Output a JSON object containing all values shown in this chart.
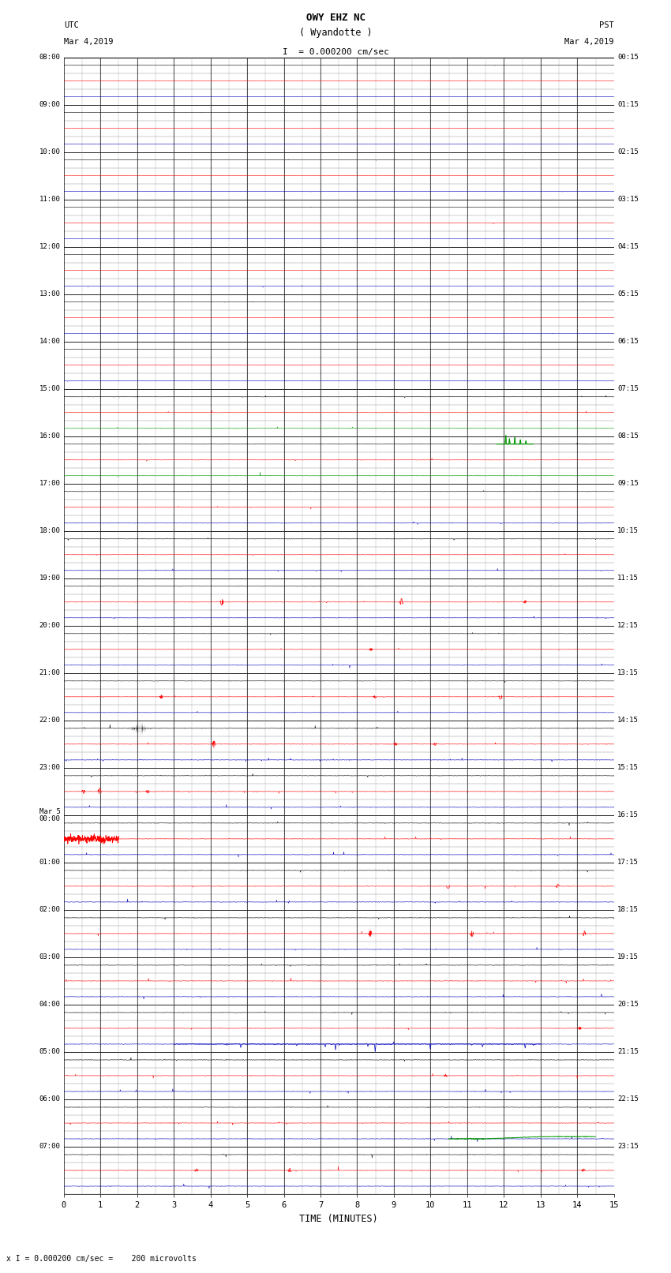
{
  "title_line1": "OWY EHZ NC",
  "title_line2": "( Wyandotte )",
  "scale_label": "I  = 0.000200 cm/sec",
  "utc_label1": "UTC",
  "utc_label2": "Mar 4,2019",
  "pst_label1": "PST",
  "pst_label2": "Mar 4,2019",
  "xlabel": "TIME (MINUTES)",
  "footer": "x I = 0.000200 cm/sec =    200 microvolts",
  "left_times": [
    "08:00",
    "09:00",
    "10:00",
    "11:00",
    "12:00",
    "13:00",
    "14:00",
    "15:00",
    "16:00",
    "17:00",
    "18:00",
    "19:00",
    "20:00",
    "21:00",
    "22:00",
    "23:00",
    "Mar 5\n00:00",
    "01:00",
    "02:00",
    "03:00",
    "04:00",
    "05:00",
    "06:00",
    "07:00"
  ],
  "right_times": [
    "00:15",
    "01:15",
    "02:15",
    "03:15",
    "04:15",
    "05:15",
    "06:15",
    "07:15",
    "08:15",
    "09:15",
    "10:15",
    "11:15",
    "12:15",
    "13:15",
    "14:15",
    "15:15",
    "16:15",
    "17:15",
    "18:15",
    "19:15",
    "20:15",
    "21:15",
    "22:15",
    "23:15"
  ],
  "num_rows": 24,
  "sub_rows": 3,
  "xlim": [
    0,
    15
  ],
  "bg_color": "#ffffff",
  "trace_color_black": "#000000",
  "trace_color_red": "#ff0000",
  "trace_color_blue": "#0000bb",
  "trace_color_green": "#009900",
  "grid_color_major": "#000000",
  "grid_color_minor": "#888888",
  "figsize": [
    8.5,
    16.13
  ],
  "dpi": 100
}
